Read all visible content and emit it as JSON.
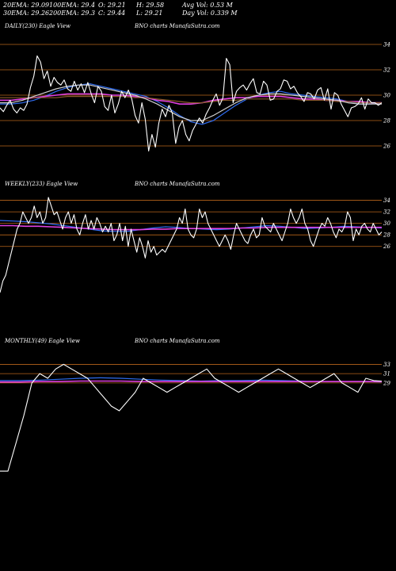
{
  "header": {
    "row1": [
      {
        "key": "ema20",
        "text": "20EMA: 29.09"
      },
      {
        "key": "ema100",
        "text": "100EMA: 29.4"
      },
      {
        "key": "open",
        "text": "O: 29.21"
      },
      {
        "key": "high",
        "text": "H: 29.58"
      },
      {
        "key": "avgvol",
        "text": "Avg Vol: 0.53 M"
      }
    ],
    "row2": [
      {
        "key": "ema30",
        "text": "30EMA: 29.26"
      },
      {
        "key": "ema200",
        "text": "200EMA: 29.3"
      },
      {
        "key": "close",
        "text": "C: 29.44"
      },
      {
        "key": "low",
        "text": "L: 29.21"
      },
      {
        "key": "dayvol",
        "text": "Day Vol: 0.339 M"
      }
    ]
  },
  "panels": [
    {
      "id": "daily",
      "title": "DAILY(230) Eagle  View",
      "source": "BNO charts MunafaSutra.com"
    },
    {
      "id": "weekly",
      "title": "WEEKLY(233) Eagle  View",
      "source": "BNO charts MunafaSutra.com"
    },
    {
      "id": "monthly",
      "title": "MONTHLY(49) Eagle  View",
      "source": "BNO charts MunafaSutra.com"
    }
  ],
  "colors": {
    "background": "#000000",
    "price": "#ffffff",
    "gridline": "#b8651b",
    "ema_blue": "#2f6cf0",
    "ema_magenta": "#e040e0",
    "ema_brown": "#8a5a2a",
    "ema_gray": "#cfcfcf"
  },
  "chart_data": [
    {
      "type": "line",
      "name": "daily",
      "yticks": [
        34,
        32,
        30,
        28,
        26
      ],
      "ylim": [
        25,
        35
      ],
      "grid": true,
      "series": [
        {
          "name": "price",
          "color": "#ffffff",
          "values": [
            29,
            28.7,
            29.2,
            29.6,
            28.9,
            28.6,
            29,
            28.8,
            29.3,
            30.6,
            31.5,
            33.1,
            32.6,
            31.3,
            31.9,
            30.7,
            31.4,
            31,
            30.8,
            31.2,
            30.5,
            30.3,
            31.1,
            30.4,
            30.9,
            30.2,
            31,
            30.1,
            29.4,
            30.7,
            30.3,
            29.1,
            28.8,
            30,
            28.6,
            29.3,
            30.3,
            29.8,
            30.4,
            29.7,
            28.4,
            27.8,
            29.4,
            28.1,
            25.6,
            26.9,
            25.9,
            27.8,
            28.9,
            28.3,
            29.2,
            28.6,
            26.2,
            27.5,
            28,
            26.9,
            26.4,
            27.2,
            27.7,
            28.2,
            27.8,
            28.5,
            29,
            29.6,
            30.1,
            29.2,
            29.8,
            32.9,
            32.4,
            29.4,
            30.3,
            30.6,
            30.8,
            30.4,
            30.9,
            31.3,
            30.2,
            30.1,
            31.1,
            30.8,
            29.6,
            29.7,
            30.3,
            30.5,
            31.2,
            31.1,
            30.5,
            30.7,
            30.2,
            29.9,
            29.5,
            30.2,
            30.1,
            29.7,
            30.4,
            30.6,
            29.6,
            30.5,
            28.9,
            30.2,
            30,
            29.3,
            28.8,
            28.3,
            29,
            29.1,
            29.3,
            29.8,
            28.9,
            29.7,
            29.4,
            29.4,
            29.2,
            29.4
          ]
        },
        {
          "name": "ema20",
          "color": "#2f6cf0",
          "values": [
            29.3,
            29.3,
            29.4,
            29.6,
            29.9,
            30.3,
            30.6,
            30.8,
            30.9,
            30.7,
            30.5,
            30.3,
            30.1,
            29.9,
            29.5,
            29,
            28.4,
            27.9,
            27.7,
            28,
            28.6,
            29.2,
            29.7,
            30,
            30.2,
            30.3,
            30.1,
            30,
            29.9,
            29.8,
            29.7,
            29.5,
            29.3,
            29.3,
            29.4
          ]
        },
        {
          "name": "ema100",
          "color": "#e040e0",
          "values": [
            29.6,
            29.6,
            29.7,
            29.8,
            29.9,
            30,
            30.1,
            30.1,
            30.1,
            30.1,
            30,
            30,
            29.9,
            29.8,
            29.6,
            29.5,
            29.3,
            29.3,
            29.4,
            29.6,
            29.7,
            29.8,
            29.8,
            29.9,
            29.9,
            29.9,
            29.8,
            29.7,
            29.7,
            29.6,
            29.6,
            29.5,
            29.5,
            29.4,
            29.4
          ]
        },
        {
          "name": "ema200",
          "color": "#8a5a2a",
          "values": [
            29.8,
            29.8,
            29.8,
            29.8,
            29.8,
            29.8,
            29.9,
            29.9,
            29.9,
            29.9,
            29.9,
            29.9,
            29.8,
            29.8,
            29.7,
            29.6,
            29.5,
            29.4,
            29.4,
            29.5,
            29.6,
            29.6,
            29.7,
            29.7,
            29.7,
            29.7,
            29.7,
            29.6,
            29.6,
            29.6,
            29.5,
            29.5,
            29.4,
            29.4,
            29.4
          ]
        },
        {
          "name": "ema30",
          "color": "#cfcfcf",
          "values": [
            29.4,
            29.4,
            29.6,
            29.9,
            30.2,
            30.5,
            30.7,
            30.8,
            30.8,
            30.6,
            30.4,
            30.2,
            30,
            29.7,
            29.3,
            28.8,
            28.3,
            28,
            28,
            28.4,
            28.9,
            29.4,
            29.8,
            30,
            30.1,
            30.1,
            30,
            29.9,
            29.8,
            29.7,
            29.6,
            29.4,
            29.3,
            29.3,
            29.3
          ]
        }
      ]
    },
    {
      "type": "line",
      "name": "weekly",
      "yticks": [
        34,
        32,
        30,
        28,
        26
      ],
      "ylim": [
        14,
        36
      ],
      "grid": true,
      "series": [
        {
          "name": "price",
          "color": "#ffffff",
          "values": [
            18,
            20,
            21,
            23,
            25,
            27,
            29,
            30,
            32,
            31,
            30,
            31,
            33,
            31,
            32,
            30,
            31,
            34.5,
            33,
            31.5,
            32,
            30.5,
            29,
            31,
            32,
            30,
            31.5,
            29,
            28,
            30,
            31.5,
            29,
            30.5,
            29,
            31,
            30,
            28.5,
            29.5,
            28.5,
            30,
            27,
            28,
            30,
            27,
            29.5,
            26,
            29,
            27,
            25,
            27.5,
            26,
            24,
            27,
            25,
            26,
            24.5,
            25,
            25.5,
            25,
            26,
            27,
            28,
            29,
            31,
            30,
            32.5,
            29,
            28,
            27.5,
            29,
            32.5,
            31,
            32,
            30,
            29,
            28,
            27,
            26,
            27,
            28,
            27,
            25.5,
            28,
            30,
            29,
            28,
            27,
            26.5,
            28,
            29,
            27.5,
            28,
            31,
            29.5,
            29,
            28.5,
            30,
            29,
            28,
            27,
            28.5,
            30,
            32.5,
            31,
            30,
            31,
            32.5,
            30,
            29,
            27,
            26,
            27.5,
            29,
            30,
            29.5,
            31,
            30,
            28.5,
            27.5,
            29,
            28.5,
            29.5,
            32,
            31,
            27,
            29,
            28,
            29.5,
            30,
            29,
            28.5,
            30,
            29,
            28,
            28.5
          ]
        },
        {
          "name": "ema20",
          "color": "#2f6cf0",
          "values": [
            30.5,
            30.4,
            30.3,
            30.1,
            29.9,
            29.6,
            29.3,
            29,
            28.7,
            28.6,
            28.6,
            28.9,
            29.2,
            29.4,
            29.3,
            29.1,
            29,
            28.9,
            29,
            29.2,
            29.4,
            29.6,
            29.5,
            29.3,
            29.1,
            29.2,
            29.3,
            29.5,
            29.4,
            29.3,
            29.2
          ]
        },
        {
          "name": "ema100",
          "color": "#e040e0",
          "values": [
            29.6,
            29.6,
            29.5,
            29.5,
            29.4,
            29.3,
            29.2,
            29.1,
            29,
            28.9,
            28.9,
            28.9,
            29,
            29,
            29.1,
            29.1,
            29.1,
            29.1,
            29.1,
            29.2,
            29.2,
            29.3,
            29.3,
            29.3,
            29.3,
            29.3,
            29.3,
            29.3,
            29.3,
            29.3,
            29.3
          ]
        }
      ]
    },
    {
      "type": "line",
      "name": "monthly",
      "yticks": [
        33,
        31,
        29
      ],
      "ylim": [
        9,
        37
      ],
      "grid": true,
      "series": [
        {
          "name": "price",
          "color": "#ffffff",
          "values": [
            10,
            10,
            16,
            22,
            29,
            31,
            30,
            32,
            33,
            32,
            31,
            30,
            28,
            26,
            24,
            23,
            25,
            27,
            30,
            29,
            28,
            27,
            28,
            29,
            30,
            31,
            32,
            30,
            29,
            28,
            27,
            28,
            29,
            30,
            31,
            32,
            31,
            30,
            29,
            28,
            29,
            30,
            31,
            29,
            28,
            27,
            30,
            29.5,
            29.4
          ]
        },
        {
          "name": "ema20",
          "color": "#2f6cf0",
          "values": [
            29.5,
            29.5,
            29.6,
            29.8,
            30,
            30.1,
            30,
            29.8,
            29.6,
            29.5,
            29.4,
            29.5,
            29.5,
            29.6,
            29.5,
            29.4,
            29.3,
            29.3,
            29.3,
            29.2
          ]
        },
        {
          "name": "ema100",
          "color": "#e040e0",
          "values": [
            29.2,
            29.2,
            29.3,
            29.3,
            29.4,
            29.4,
            29.4,
            29.3,
            29.3,
            29.3,
            29.3,
            29.3,
            29.3,
            29.3,
            29.3,
            29.3,
            29.3,
            29.3,
            29.3,
            29.3
          ]
        }
      ]
    }
  ]
}
